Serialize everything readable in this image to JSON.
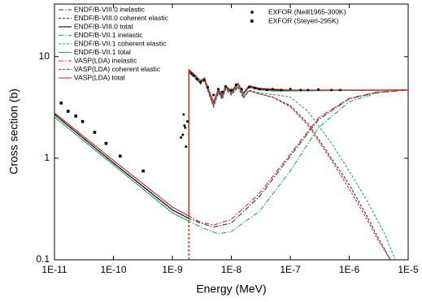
{
  "chart_data": {
    "type": "line",
    "x_label": "Energy (MeV)",
    "y_label": "Cross section (b)",
    "log_x": true,
    "log_y": true,
    "xlim": [
      1e-11,
      1e-05
    ],
    "xticks": [
      {
        "value": 1e-11,
        "label": "1E-11"
      },
      {
        "value": 1e-10,
        "label": "1E-10"
      },
      {
        "value": 1e-09,
        "label": "1E-9"
      },
      {
        "value": 1e-08,
        "label": "1E-8"
      },
      {
        "value": 1e-07,
        "label": "1E-7"
      },
      {
        "value": 1e-06,
        "label": "1E-6"
      },
      {
        "value": 1e-05,
        "label": "1E-5"
      }
    ],
    "ylim": [
      0.1,
      33
    ],
    "yticks": [
      0.1,
      1,
      10
    ],
    "series": [
      {
        "name": "ENDF/B-VIII.0 inelastic",
        "color": "#333333",
        "style": "dashdot",
        "x": [
          1e-11,
          1e-10,
          1e-09,
          1.9e-09,
          3e-09,
          5e-09,
          1e-08,
          3e-08,
          1e-07,
          3e-07,
          1e-06,
          3e-06,
          1e-05
        ],
        "values": [
          2.7,
          0.9,
          0.31,
          0.255,
          0.23,
          0.21,
          0.23,
          0.42,
          1.05,
          2.4,
          3.85,
          4.45,
          4.7
        ]
      },
      {
        "name": "ENDF/B-VIII.0 coherent elastic",
        "color": "#333333",
        "style": "dashed",
        "x": [
          1.9e-09,
          1.9e-09,
          2.5e-09,
          3e-09,
          3.5e-09,
          4e-09,
          5e-09,
          6e-09,
          7e-09,
          8e-09,
          1e-08,
          1.3e-08,
          1.6e-08,
          2e-08,
          3e-08,
          5e-08,
          1e-07,
          2e-07,
          5e-07,
          1e-06,
          2e-06,
          3e-06,
          5e-06
        ],
        "values": [
          0.1,
          7.0,
          6.1,
          5.4,
          5.8,
          4.6,
          3.2,
          4.4,
          3.8,
          4.8,
          4.2,
          5.0,
          3.9,
          4.6,
          4.3,
          4.0,
          3.3,
          2.2,
          1.0,
          0.55,
          0.27,
          0.17,
          0.1
        ]
      },
      {
        "name": "ENDF/B-VIII.0 total",
        "color": "#000000",
        "style": "solid",
        "x": [
          1e-11,
          1e-10,
          1e-09,
          1.9e-09,
          1.9e-09,
          2.5e-09,
          3e-09,
          3.5e-09,
          4e-09,
          5e-09,
          6e-09,
          7e-09,
          8e-09,
          1e-08,
          1.3e-08,
          1.6e-08,
          2e-08,
          3e-08,
          5e-08,
          1e-07,
          1e-06,
          1e-05
        ],
        "values": [
          2.7,
          0.9,
          0.31,
          0.255,
          7.3,
          6.4,
          5.7,
          6.1,
          4.9,
          3.5,
          4.7,
          4.1,
          5.1,
          4.5,
          5.4,
          4.3,
          5.1,
          4.8,
          4.7,
          4.65,
          4.65,
          4.7
        ]
      },
      {
        "name": "ENDF/B-VII.1 inelastic",
        "color": "#2e9e6a",
        "style": "dashdot",
        "x": [
          1e-11,
          1e-10,
          1e-09,
          1.9e-09,
          3e-09,
          6e-09,
          1e-08,
          3e-08,
          1e-07,
          3e-07,
          1e-06,
          3e-06,
          1e-05
        ],
        "values": [
          2.55,
          0.86,
          0.29,
          0.24,
          0.21,
          0.18,
          0.19,
          0.3,
          0.75,
          2.0,
          3.6,
          4.4,
          4.7
        ]
      },
      {
        "name": "ENDF/B-VII.1 coherent elastic",
        "color": "#2e9e6a",
        "style": "dashed",
        "x": [
          1.9e-09,
          1.9e-09,
          2.5e-09,
          3e-09,
          3.5e-09,
          4e-09,
          5e-09,
          6e-09,
          7e-09,
          8e-09,
          1e-08,
          1.3e-08,
          1.6e-08,
          2e-08,
          3e-08,
          6e-08,
          1e-07,
          2e-07,
          5e-07,
          1e-06,
          2e-06,
          4e-06,
          6e-06
        ],
        "values": [
          0.1,
          7.1,
          6.2,
          5.5,
          5.9,
          4.7,
          3.3,
          4.5,
          3.9,
          4.9,
          4.3,
          5.1,
          4.0,
          4.7,
          4.4,
          4.2,
          4.0,
          2.9,
          1.4,
          0.75,
          0.38,
          0.18,
          0.1
        ]
      },
      {
        "name": "ENDF/B-VII.1 total",
        "color": "#2e9e6a",
        "style": "solid",
        "x": [
          1e-11,
          1e-10,
          1e-09,
          1.9e-09,
          1.9e-09,
          2.5e-09,
          3e-09,
          3.5e-09,
          4e-09,
          5e-09,
          6e-09,
          7e-09,
          8e-09,
          1e-08,
          1.3e-08,
          1.6e-08,
          2e-08,
          3e-08,
          5e-08,
          1e-07,
          1e-06,
          1e-05
        ],
        "values": [
          2.55,
          0.86,
          0.29,
          0.24,
          7.2,
          6.3,
          5.6,
          6.0,
          4.8,
          3.4,
          4.6,
          4.0,
          5.0,
          4.4,
          5.3,
          4.2,
          5.0,
          4.7,
          4.6,
          4.6,
          4.65,
          4.7
        ]
      },
      {
        "name": "VASP(LDA) inelastic",
        "color": "#d42a2a",
        "style": "dashdot",
        "x": [
          1e-11,
          1e-10,
          1e-09,
          1.9e-09,
          3e-09,
          5e-09,
          1e-08,
          3e-08,
          1e-07,
          3e-07,
          1e-06,
          3e-06,
          1e-05
        ],
        "values": [
          2.8,
          0.95,
          0.33,
          0.27,
          0.235,
          0.22,
          0.25,
          0.45,
          1.1,
          2.5,
          3.9,
          4.5,
          4.7
        ]
      },
      {
        "name": "VASP(LDA) coherent elastic",
        "color": "#d42a2a",
        "style": "dashed",
        "x": [
          1.9e-09,
          1.9e-09,
          2.5e-09,
          3e-09,
          3.5e-09,
          4e-09,
          5e-09,
          6e-09,
          7e-09,
          8e-09,
          1e-08,
          1.3e-08,
          1.6e-08,
          2e-08,
          3e-08,
          5e-08,
          1e-07,
          2e-07,
          5e-07,
          1e-06,
          2e-06,
          3e-06,
          5e-06
        ],
        "values": [
          0.1,
          7.2,
          6.2,
          5.5,
          5.9,
          4.7,
          3.3,
          4.5,
          3.9,
          4.9,
          4.3,
          5.1,
          4.0,
          4.6,
          4.3,
          4.0,
          3.2,
          2.1,
          0.95,
          0.5,
          0.25,
          0.16,
          0.1
        ]
      },
      {
        "name": "VASP(LDA) total",
        "color": "#d42a2a",
        "style": "solid",
        "x": [
          1e-11,
          1e-10,
          1e-09,
          1.9e-09,
          1.9e-09,
          2.5e-09,
          3e-09,
          3.5e-09,
          4e-09,
          5e-09,
          6e-09,
          7e-09,
          8e-09,
          1e-08,
          1.3e-08,
          1.6e-08,
          2e-08,
          3e-08,
          5e-08,
          1e-07,
          1e-06,
          1e-05
        ],
        "values": [
          2.8,
          0.95,
          0.33,
          0.27,
          7.5,
          6.5,
          5.8,
          6.2,
          5.0,
          3.6,
          4.8,
          4.2,
          5.2,
          4.6,
          5.5,
          4.4,
          5.2,
          4.9,
          4.8,
          4.7,
          4.7,
          4.7
        ]
      },
      {
        "name": "EXFOR (Neill1965-300K)",
        "color": "#000000",
        "marker": "circle",
        "x": [
          1.4e-09,
          1.5e-09,
          1.6e-09,
          1.7e-09,
          1.8e-09,
          1.55e-09,
          1.65e-09,
          2.1e-09,
          2.3e-09,
          2.6e-09,
          3e-09,
          3.5e-09,
          4e-09,
          5e-09,
          6e-09,
          7e-09,
          8e-09,
          1e-08,
          1.2e-08,
          1.5e-08,
          2e-08,
          2.5e-08,
          3e-08,
          4e-08,
          5e-08,
          7e-08,
          1e-07,
          1.5e-07,
          2e-07,
          3e-07,
          5e-07,
          7e-07
        ],
        "values": [
          1.6,
          1.7,
          2.1,
          1.3,
          2.3,
          2.7,
          2.0,
          6.8,
          6.5,
          6.0,
          5.6,
          5.9,
          5.0,
          4.2,
          4.8,
          4.5,
          5.1,
          4.7,
          5.3,
          4.8,
          5.0,
          4.9,
          4.8,
          4.7,
          4.8,
          4.7,
          4.8,
          4.7,
          4.7,
          4.75,
          4.7,
          4.7
        ]
      },
      {
        "name": "EXFOR (Steyerl-295K)",
        "color": "#000000",
        "marker": "square",
        "x": [
          1.3e-11,
          1.7e-11,
          2.3e-11,
          3e-11,
          4.8e-11,
          7.5e-11,
          1.3e-10,
          3.2e-10
        ],
        "values": [
          3.5,
          2.9,
          2.6,
          2.3,
          1.8,
          1.4,
          1.05,
          0.75
        ]
      }
    ]
  }
}
